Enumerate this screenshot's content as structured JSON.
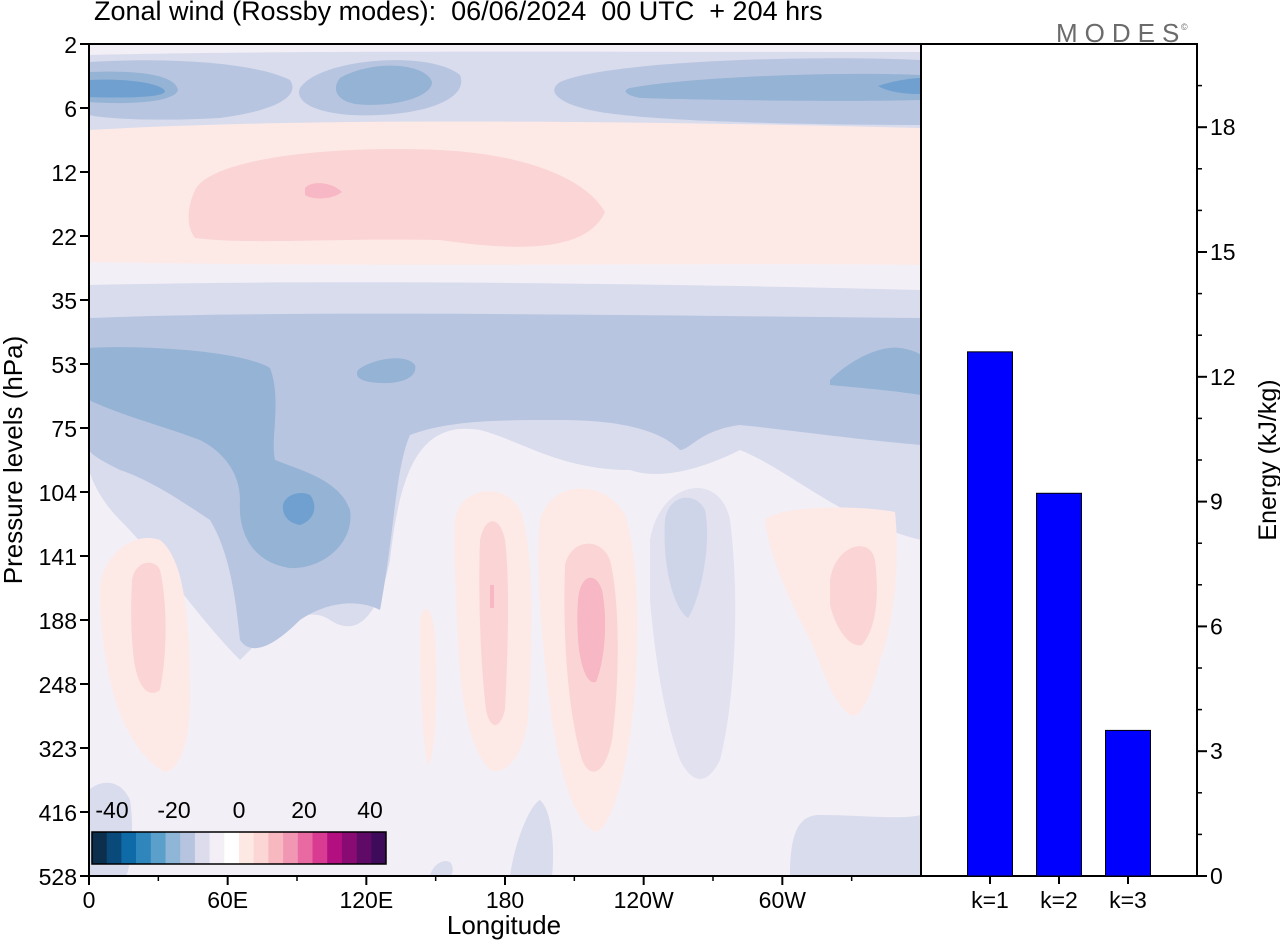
{
  "title": "Zonal wind (Rossby modes):  06/06/2024  00 UTC  + 204 hrs",
  "brand": "MODES",
  "brand_mark": "©",
  "colors": {
    "bar_fill": "#0000ff",
    "frame": "#000000",
    "colorbar": [
      "#0b2f4c",
      "#0a4a7a",
      "#0f6aa8",
      "#2f86bd",
      "#5b9fcb",
      "#8fb6d6",
      "#b7c4df",
      "#dcdcec",
      "#f4eff6",
      "#ffffff",
      "#fde8e4",
      "#fbd6d4",
      "#f7b8c0",
      "#f197b4",
      "#e96aa3",
      "#d93a92",
      "#b30f80",
      "#880a72",
      "#5e0a66",
      "#3e0a5a"
    ],
    "contour_levels": {
      "blue_4": "#6fa0cf",
      "blue_3": "#94b3d5",
      "blue_2": "#b8c5e0",
      "blue_1": "#d9dced",
      "white": "#f3eff6",
      "red_1": "#fdeae7",
      "red_2": "#fbd5d6",
      "red_3": "#f7b7c4"
    }
  },
  "chart_data": [
    {
      "type": "heatmap",
      "title": "Zonal wind (Rossby modes):  06/06/2024  00 UTC  + 204 hrs",
      "xlabel": "Longitude",
      "ylabel": "Pressure levels (hPa)",
      "x_ticks": [
        "0",
        "60E",
        "120E",
        "180",
        "120W",
        "60W"
      ],
      "y_ticks": [
        "2",
        "6",
        "12",
        "22",
        "35",
        "53",
        "75",
        "104",
        "141",
        "188",
        "248",
        "323",
        "416",
        "528"
      ],
      "colorbar_ticks": [
        "-40",
        "-20",
        "0",
        "20",
        "40"
      ],
      "colorbar_range": [
        -40,
        40
      ]
    },
    {
      "type": "bar",
      "categories": [
        "k=1",
        "k=2",
        "k=3"
      ],
      "values": [
        12.6,
        9.2,
        3.5
      ],
      "ylabel": "Energy (kJ/kg)",
      "ylim": [
        0,
        20
      ],
      "y_ticks": [
        0,
        3,
        6,
        9,
        12,
        15,
        18
      ]
    }
  ]
}
